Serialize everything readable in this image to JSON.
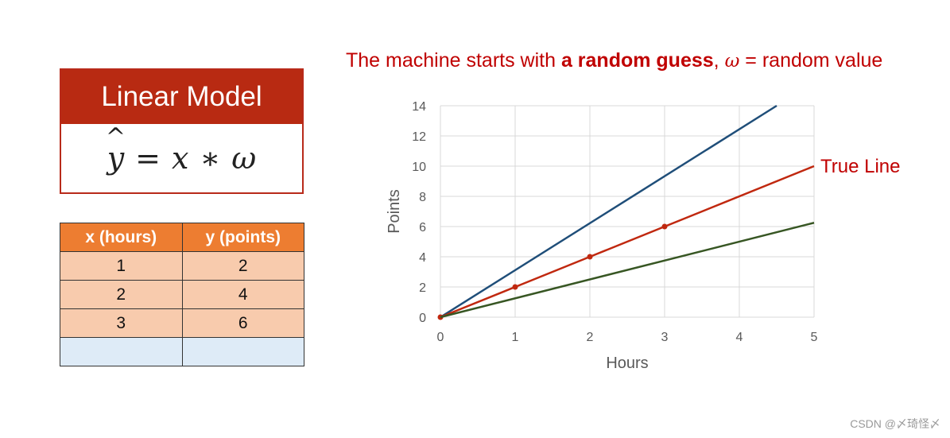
{
  "model": {
    "title": "Linear Model",
    "equation": {
      "lhs": "y",
      "hat": "^",
      "op1": "=",
      "x": "x",
      "op2": "∗",
      "w": "ω"
    }
  },
  "table": {
    "headers": [
      "x (hours)",
      "y (points)"
    ],
    "rows": [
      [
        "1",
        "2"
      ],
      [
        "2",
        "4"
      ],
      [
        "3",
        "6"
      ],
      [
        "",
        ""
      ]
    ]
  },
  "heading": {
    "part1": "The machine starts with ",
    "bold": "a random guess",
    "part2": ", ",
    "omega": "ω",
    "part3": " = random value"
  },
  "watermark": "CSDN @〆琦怪〆",
  "chart_data": {
    "type": "line",
    "xlabel": "Hours",
    "ylabel": "Points",
    "xlim": [
      0,
      5
    ],
    "ylim": [
      0,
      14
    ],
    "xticks": [
      0,
      1,
      2,
      3,
      4,
      5
    ],
    "yticks": [
      0,
      2,
      4,
      6,
      8,
      10,
      12,
      14
    ],
    "grid": true,
    "series": [
      {
        "color": "#1f4e79",
        "x": [
          0,
          4.5
        ],
        "y": [
          0,
          14
        ],
        "markers": false
      },
      {
        "name": "True Line",
        "color": "#c0280f",
        "x": [
          0,
          1,
          2,
          3,
          5
        ],
        "y": [
          0,
          2,
          4,
          6,
          10
        ],
        "markers": true,
        "marker_x": [
          0,
          1,
          2,
          3
        ],
        "marker_y": [
          0,
          2,
          4,
          6
        ]
      },
      {
        "color": "#375623",
        "x": [
          0,
          5
        ],
        "y": [
          0,
          6.25
        ],
        "markers": false
      }
    ],
    "annotations": [
      {
        "text": "True Line",
        "color": "#c00000"
      }
    ]
  }
}
